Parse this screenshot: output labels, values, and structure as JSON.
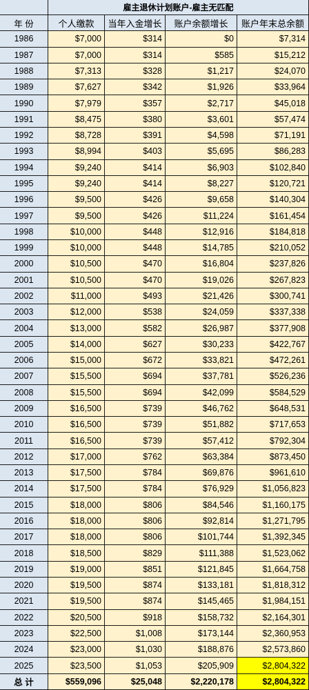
{
  "header": {
    "title": "雇主退休计划账户-雇主无匹配",
    "columns": [
      "年 份",
      "个人缴款",
      "当年入金增长",
      "账户余额增长",
      "账户年末总余额"
    ]
  },
  "table": {
    "rows": [
      [
        "1986",
        "$7,000",
        "$314",
        "$0",
        "$7,314"
      ],
      [
        "1987",
        "$7,000",
        "$314",
        "$585",
        "$15,212"
      ],
      [
        "1988",
        "$7,313",
        "$328",
        "$1,217",
        "$24,070"
      ],
      [
        "1989",
        "$7,627",
        "$342",
        "$1,926",
        "$33,964"
      ],
      [
        "1990",
        "$7,979",
        "$357",
        "$2,717",
        "$45,018"
      ],
      [
        "1991",
        "$8,475",
        "$380",
        "$3,601",
        "$57,474"
      ],
      [
        "1992",
        "$8,728",
        "$391",
        "$4,598",
        "$71,191"
      ],
      [
        "1993",
        "$8,994",
        "$403",
        "$5,695",
        "$86,283"
      ],
      [
        "1994",
        "$9,240",
        "$414",
        "$6,903",
        "$102,840"
      ],
      [
        "1995",
        "$9,240",
        "$414",
        "$8,227",
        "$120,721"
      ],
      [
        "1996",
        "$9,500",
        "$426",
        "$9,658",
        "$140,304"
      ],
      [
        "1997",
        "$9,500",
        "$426",
        "$11,224",
        "$161,454"
      ],
      [
        "1998",
        "$10,000",
        "$448",
        "$12,916",
        "$184,818"
      ],
      [
        "1999",
        "$10,000",
        "$448",
        "$14,785",
        "$210,052"
      ],
      [
        "2000",
        "$10,500",
        "$470",
        "$16,804",
        "$237,826"
      ],
      [
        "2001",
        "$10,500",
        "$470",
        "$19,026",
        "$267,823"
      ],
      [
        "2002",
        "$11,000",
        "$493",
        "$21,426",
        "$300,741"
      ],
      [
        "2003",
        "$12,000",
        "$538",
        "$24,059",
        "$337,338"
      ],
      [
        "2004",
        "$13,000",
        "$582",
        "$26,987",
        "$377,908"
      ],
      [
        "2005",
        "$14,000",
        "$627",
        "$30,233",
        "$422,767"
      ],
      [
        "2006",
        "$15,000",
        "$672",
        "$33,821",
        "$472,261"
      ],
      [
        "2007",
        "$15,500",
        "$694",
        "$37,781",
        "$526,236"
      ],
      [
        "2008",
        "$15,500",
        "$694",
        "$42,099",
        "$584,529"
      ],
      [
        "2009",
        "$16,500",
        "$739",
        "$46,762",
        "$648,531"
      ],
      [
        "2010",
        "$16,500",
        "$739",
        "$51,882",
        "$717,653"
      ],
      [
        "2011",
        "$16,500",
        "$739",
        "$57,412",
        "$792,304"
      ],
      [
        "2012",
        "$17,000",
        "$762",
        "$63,384",
        "$873,450"
      ],
      [
        "2013",
        "$17,500",
        "$784",
        "$69,876",
        "$961,610"
      ],
      [
        "2014",
        "$17,500",
        "$784",
        "$76,929",
        "$1,056,823"
      ],
      [
        "2015",
        "$18,000",
        "$806",
        "$84,546",
        "$1,160,175"
      ],
      [
        "2016",
        "$18,000",
        "$806",
        "$92,814",
        "$1,271,795"
      ],
      [
        "2017",
        "$18,000",
        "$806",
        "$101,744",
        "$1,392,345"
      ],
      [
        "2018",
        "$18,500",
        "$829",
        "$111,388",
        "$1,523,062"
      ],
      [
        "2019",
        "$19,000",
        "$851",
        "$121,845",
        "$1,664,758"
      ],
      [
        "2020",
        "$19,500",
        "$874",
        "$133,181",
        "$1,818,312"
      ],
      [
        "2021",
        "$19,500",
        "$874",
        "$145,465",
        "$1,984,151"
      ],
      [
        "2022",
        "$20,500",
        "$918",
        "$158,732",
        "$2,164,301"
      ],
      [
        "2023",
        "$22,500",
        "$1,008",
        "$173,144",
        "$2,360,953"
      ],
      [
        "2024",
        "$23,000",
        "$1,030",
        "$188,876",
        "$2,573,860"
      ],
      [
        "2025",
        "$23,500",
        "$1,053",
        "$205,909",
        "$2,804,322"
      ]
    ]
  },
  "total": [
    "总 计",
    "$559,096",
    "$25,048",
    "$2,220,178",
    "$2,804,322"
  ]
}
